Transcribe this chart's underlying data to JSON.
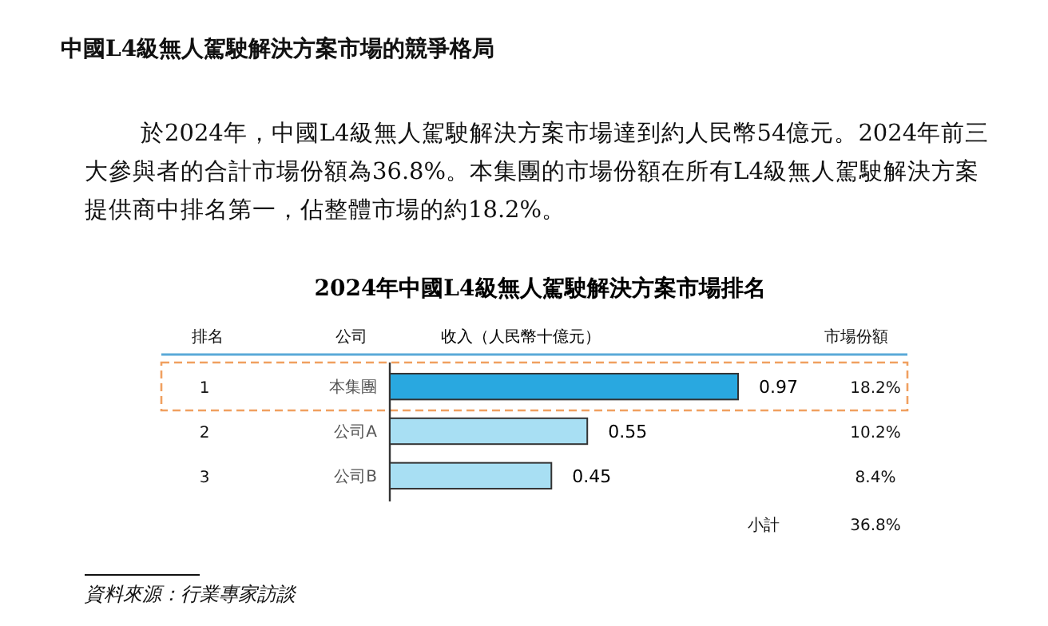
{
  "chart_data": {
    "type": "bar",
    "orientation": "horizontal",
    "title": "2024年中國L4級無人駕駛解決方案市場排名",
    "xlabel": "收入（人民幣十億元）",
    "categories": [
      "本集團",
      "公司A",
      "公司B"
    ],
    "values": [
      0.97,
      0.55,
      0.45
    ],
    "colors": [
      "#29a8e0",
      "#a8dff3",
      "#a8dff3"
    ],
    "data_labels": true,
    "annotations": [
      "中國L4級無人駕駛解決方案市場的競爭格局",
      "於2024年，中國L4級無人駕駛解決方案市場達到約人民幣54億元。2024年前三",
      "大參與者的合計市場份額為36.8%。本集團的市場份額在所有L4級無人駕駛解決方案",
      "提供商中排名第一，佔整體市場的約18.2%。",
      "排名",
      "公司",
      "市場份額",
      "1",
      "2",
      "3",
      "18.2%",
      "10.2%",
      "8.4%",
      "小計",
      "36.8%",
      "資料來源：行業專家訪談"
    ]
  }
}
